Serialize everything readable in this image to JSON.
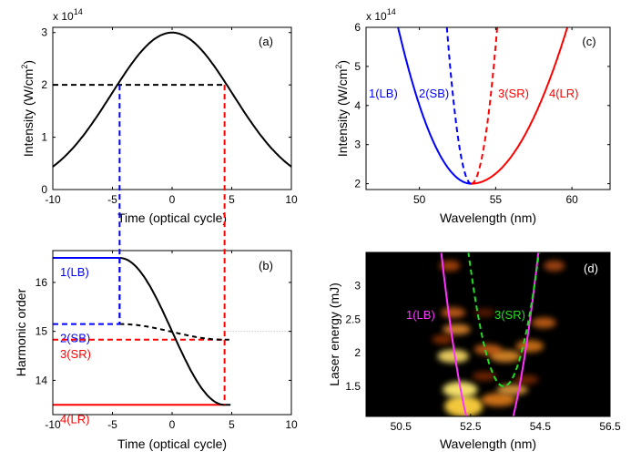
{
  "chart_data": [
    {
      "id": "a",
      "type": "line",
      "panel_label": "(a)",
      "xlabel": "Time (optical cycle)",
      "ylabel": "Intensity (W/cm",
      "ylabel_sup": "2",
      "ylabel_tail": ")",
      "exponent_base": "x 10",
      "exponent_power": "14",
      "xlim": [
        -10,
        10
      ],
      "ylim": [
        0,
        3.1
      ],
      "xticks": [
        -10,
        -5,
        0,
        5,
        10
      ],
      "xtick_labels": [
        "-10",
        "-5",
        "0",
        "5",
        "10"
      ],
      "yticks": [
        0,
        1,
        2,
        3
      ],
      "ytick_labels": [
        "0",
        "1",
        "2",
        "3"
      ],
      "grid": false,
      "series": [
        {
          "kind": "gaussian-pulse",
          "peak": 3,
          "fwhm": 12,
          "color": "#000000",
          "dash": false
        }
      ],
      "guides": [
        {
          "kind": "hline",
          "y": 2,
          "x_from": -10,
          "x_to": 4.4,
          "color": "#000000"
        },
        {
          "kind": "vline-to-b",
          "x": -4.4,
          "y": 2,
          "color": "#0000ff"
        },
        {
          "kind": "vline-to-b",
          "x": 4.4,
          "y": 2,
          "color": "#ff0000"
        }
      ]
    },
    {
      "id": "b",
      "type": "line",
      "panel_label": "(b)",
      "xlabel": "Time (optical cycle)",
      "ylabel": "Harmonic order",
      "xlim": [
        -10,
        10
      ],
      "ylim": [
        13.3,
        16.65
      ],
      "xticks": [
        -10,
        -5,
        0,
        5,
        10
      ],
      "xtick_labels": [
        "-10",
        "-5",
        "0",
        "5",
        "10"
      ],
      "yticks": [
        14,
        15,
        16
      ],
      "ytick_labels": [
        "14",
        "15",
        "16"
      ],
      "grid": false,
      "reference_line": {
        "y": 15,
        "color": "#b0b0b0"
      },
      "levels": [
        {
          "label": "1(LB)",
          "y": 16.5,
          "x_end": -4.4,
          "color": "#0000ff",
          "dash": false
        },
        {
          "label": "2(SB)",
          "y": 15.15,
          "x_end": -4.4,
          "color": "#0000ff",
          "dash": true
        },
        {
          "label": "3(SR)",
          "y": 14.83,
          "x_end": 4.4,
          "color": "#ff0000",
          "dash": true
        },
        {
          "label": "4(LR)",
          "y": 13.5,
          "x_end": 4.4,
          "color": "#ff0000",
          "dash": false
        }
      ],
      "curves": [
        {
          "name": "long",
          "x0": -4.4,
          "x1": 4.9,
          "y_hi": 16.5,
          "y_lo": 13.5,
          "color": "#000000",
          "dash": false
        },
        {
          "name": "short",
          "x0": -4.4,
          "x1": 4.9,
          "y_hi": 15.15,
          "y_lo": 14.83,
          "color": "#000000",
          "dash": true
        }
      ]
    },
    {
      "id": "c",
      "type": "line",
      "panel_label": "(c)",
      "xlabel": "Wavelength (nm)",
      "ylabel": "Intensity (W/cm",
      "ylabel_sup": "2",
      "ylabel_tail": ")",
      "exponent_base": "x 10",
      "exponent_power": "14",
      "xlim": [
        46.5,
        62.5
      ],
      "ylim": [
        1.85,
        6
      ],
      "xticks": [
        50,
        55,
        60
      ],
      "xtick_labels": [
        "50",
        "55",
        "60"
      ],
      "yticks": [
        2,
        3,
        4,
        5,
        6
      ],
      "ytick_labels": [
        "2",
        "3",
        "4",
        "5",
        "6"
      ],
      "grid": false,
      "vertex": {
        "x": 53.4,
        "y": 2
      },
      "series": [
        {
          "name": "1(LB)",
          "side": "left",
          "x_end": 48.6,
          "color": "#0000ff",
          "dash": false
        },
        {
          "name": "2(SB)",
          "side": "left",
          "x_end": 51.8,
          "color": "#0000ff",
          "dash": true
        },
        {
          "name": "3(SR)",
          "side": "right",
          "x_end": 55.1,
          "color": "#ff0000",
          "dash": true
        },
        {
          "name": "4(LR)",
          "side": "right",
          "x_end": 59.7,
          "color": "#ff0000",
          "dash": false
        }
      ]
    },
    {
      "id": "d",
      "type": "heatmap",
      "panel_label": "(d)",
      "xlabel": "Wavelength (nm)",
      "ylabel": "Laser energy (mJ)",
      "xlim": [
        49.5,
        56.5
      ],
      "ylim": [
        1.05,
        3.5
      ],
      "xticks": [
        50.5,
        52.5,
        54.5,
        56.5
      ],
      "xtick_labels": [
        "50.5",
        "52.5",
        "54.5",
        "56.5"
      ],
      "yticks": [
        1.5,
        2,
        2.5,
        3
      ],
      "ytick_labels": [
        "1.5",
        "2",
        "2.5",
        "3"
      ],
      "grid": false,
      "overlays": [
        {
          "name": "1(LB)",
          "kind": "magenta-parabola",
          "color": "#ff33ff",
          "dash": false
        },
        {
          "name": "3(SR)",
          "kind": "green-parabola",
          "color": "#22dd22",
          "dash": true
        }
      ],
      "labels": [
        {
          "text": "1(LB)",
          "color": "#ff33ff"
        },
        {
          "text": "3(SR)",
          "color": "#22dd22"
        }
      ]
    }
  ]
}
